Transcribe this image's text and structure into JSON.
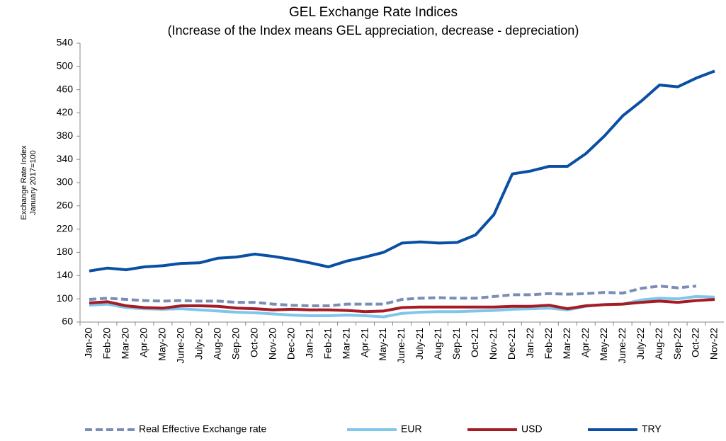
{
  "chart_data": {
    "type": "line",
    "title": "GEL  Exchange Rate Indices",
    "subtitle": "(Increase of the Index means GEL appreciation, decrease - depreciation)",
    "y_label": [
      "Exchange Rate Index",
      "January 2017=100"
    ],
    "categories": [
      "Jan-20",
      "Feb-20",
      "Mar-20",
      "Apr-20",
      "May-20",
      "June-20",
      "July-20",
      "Aug-20",
      "Sep-20",
      "Oct-20",
      "Nov-20",
      "Dec-20",
      "Jan-21",
      "Feb-21",
      "Mar-21",
      "Apr-21",
      "May-21",
      "June-21",
      "July-21",
      "Aug-21",
      "Sep-21",
      "Oct-21",
      "Nov-21",
      "Dec-21",
      "Jan-22",
      "Feb-22",
      "Mar-22",
      "Apr-22",
      "May-22",
      "June-22",
      "July-22",
      "Aug-22",
      "Sep-22",
      "Oct-22",
      "Nov-22"
    ],
    "series": [
      {
        "name": "Real Effective Exchange rate",
        "color": "#7a8db5",
        "dashed": true,
        "values": [
          99,
          101,
          99,
          97,
          96,
          97,
          96,
          96,
          94,
          94,
          91,
          89,
          88,
          88,
          91,
          91,
          91,
          99,
          101,
          102,
          101,
          101,
          104,
          107,
          107,
          109,
          108,
          109,
          111,
          110,
          118,
          122,
          119,
          122,
          null
        ]
      },
      {
        "name": "EUR",
        "color": "#7fc6ea",
        "dashed": false,
        "values": [
          89,
          91,
          85,
          83,
          82,
          83,
          81,
          79,
          77,
          76,
          74,
          72,
          71,
          71,
          72,
          71,
          69,
          75,
          77,
          78,
          78,
          79,
          80,
          82,
          83,
          84,
          81,
          87,
          90,
          91,
          98,
          101,
          100,
          104,
          103
        ]
      },
      {
        "name": "USD",
        "color": "#a51c24",
        "dashed": false,
        "values": [
          93,
          95,
          88,
          85,
          84,
          88,
          88,
          87,
          84,
          83,
          81,
          82,
          81,
          81,
          80,
          78,
          79,
          85,
          86,
          86,
          86,
          86,
          86,
          87,
          87,
          89,
          83,
          88,
          90,
          91,
          94,
          96,
          94,
          97,
          99
        ]
      },
      {
        "name": "TRY",
        "color": "#0a4fa3",
        "dashed": false,
        "values": [
          148,
          153,
          150,
          155,
          157,
          161,
          162,
          170,
          172,
          177,
          173,
          168,
          162,
          155,
          165,
          172,
          180,
          196,
          198,
          196,
          197,
          210,
          245,
          315,
          320,
          328,
          328,
          350,
          380,
          415,
          440,
          468,
          465,
          480,
          492
        ]
      }
    ],
    "ylim": [
      60,
      540
    ],
    "yticks": [
      60,
      100,
      140,
      180,
      220,
      260,
      300,
      340,
      380,
      420,
      460,
      500,
      540
    ],
    "legend": "bottom"
  }
}
